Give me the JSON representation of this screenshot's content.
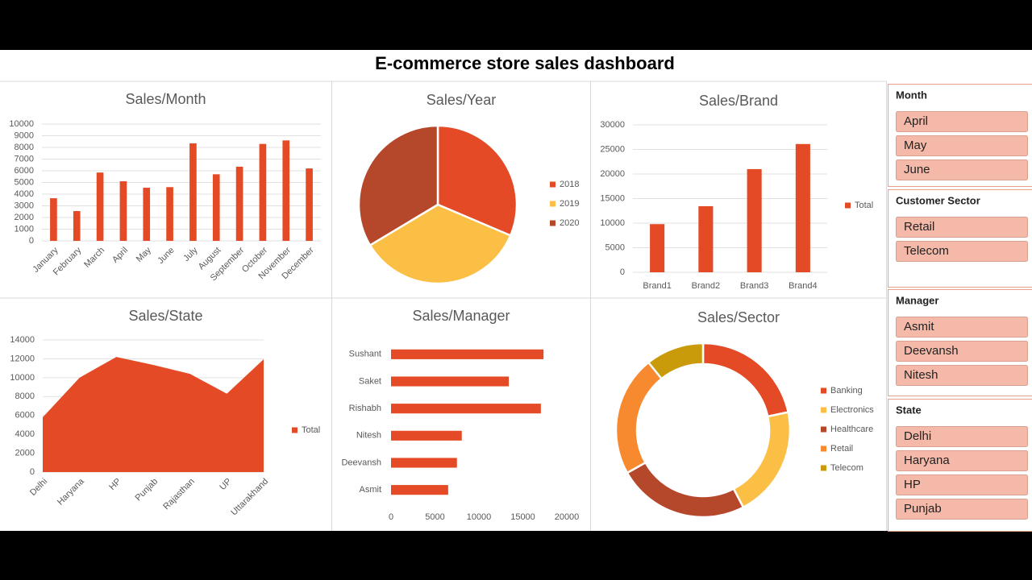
{
  "title": "E-commerce store sales dashboard",
  "chart_data": [
    {
      "type": "bar",
      "title": "Sales/Month",
      "categories": [
        "January",
        "February",
        "March",
        "April",
        "May",
        "June",
        "July",
        "August",
        "September",
        "October",
        "November",
        "December"
      ],
      "values": [
        3650,
        2550,
        5850,
        5100,
        4550,
        4600,
        8350,
        5700,
        6350,
        8300,
        8600,
        6200
      ],
      "color": "#e34a25",
      "ylim": [
        0,
        10000
      ],
      "yticks": [
        0,
        1000,
        2000,
        3000,
        4000,
        5000,
        6000,
        7000,
        8000,
        9000,
        10000
      ],
      "grid": true,
      "rotate_labels": true
    },
    {
      "type": "pie",
      "title": "Sales/Year",
      "categories": [
        "2018",
        "2019",
        "2020"
      ],
      "values": [
        31.4,
        35.0,
        33.6
      ],
      "colors": [
        "#e34a25",
        "#fbbf45",
        "#b5472a"
      ],
      "legend": "right"
    },
    {
      "type": "bar",
      "title": "Sales/Brand",
      "categories": [
        "Brand1",
        "Brand2",
        "Brand3",
        "Brand4"
      ],
      "series": [
        {
          "name": "Total",
          "color": "#e34a25",
          "values": [
            9800,
            13450,
            21000,
            26100
          ]
        }
      ],
      "ylim": [
        0,
        30000
      ],
      "yticks": [
        0,
        5000,
        10000,
        15000,
        20000,
        25000,
        30000
      ],
      "grid": true,
      "legend": "right"
    },
    {
      "type": "area",
      "title": "Sales/State",
      "categories": [
        "Delhi",
        "Haryana",
        "HP",
        "Punjab",
        "Rajasthan",
        "UP",
        "Uttarakhand"
      ],
      "series": [
        {
          "name": "Total",
          "color": "#e34a25",
          "values": [
            5800,
            10000,
            12200,
            11350,
            10400,
            8300,
            11950
          ]
        }
      ],
      "ylim": [
        0,
        14000
      ],
      "yticks": [
        0,
        2000,
        4000,
        6000,
        8000,
        10000,
        12000,
        14000
      ],
      "grid": true,
      "legend": "right",
      "rotate_labels": true
    },
    {
      "type": "hbar",
      "title": "Sales/Manager",
      "categories": [
        "Sushant",
        "Saket",
        "Rishabh",
        "Nitesh",
        "Deevansh",
        "Asmit"
      ],
      "values": [
        17350,
        13400,
        17050,
        8050,
        7500,
        6500
      ],
      "color": "#e34a25",
      "xlim": [
        0,
        20000
      ],
      "xticks": [
        0,
        5000,
        10000,
        15000,
        20000
      ],
      "grid": false
    },
    {
      "type": "donut",
      "title": "Sales/Sector",
      "categories": [
        "Banking",
        "Electronics",
        "Healthcare",
        "Retail",
        "Telecom"
      ],
      "values": [
        21.7,
        20.7,
        24.5,
        22.4,
        10.8
      ],
      "colors": [
        "#e34a25",
        "#fbbf45",
        "#b5472a",
        "#f7892e",
        "#c99a0a"
      ],
      "legend": "right"
    }
  ],
  "slicers": [
    {
      "title": "Month",
      "items": [
        "April",
        "May",
        "June"
      ]
    },
    {
      "title": "Customer Sector",
      "items": [
        "Retail",
        "Telecom"
      ]
    },
    {
      "title": "Manager",
      "items": [
        "Asmit",
        "Deevansh",
        "Nitesh"
      ]
    },
    {
      "title": "State",
      "items": [
        "Delhi",
        "Haryana",
        "HP",
        "Punjab"
      ]
    }
  ]
}
